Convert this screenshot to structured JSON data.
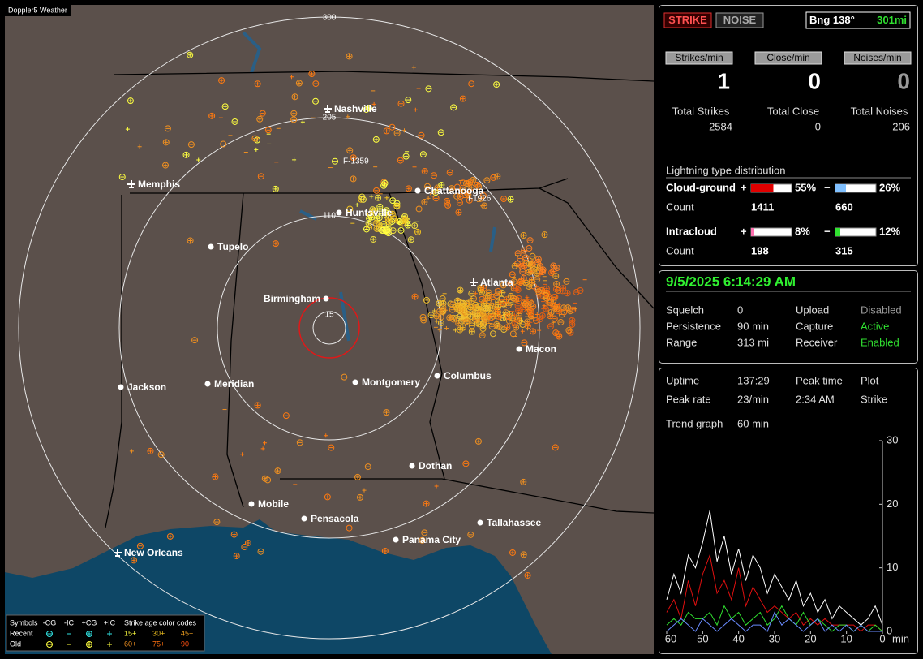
{
  "map": {
    "brand": "Doppler5 Weather",
    "rings": [
      "300",
      "205",
      "110",
      "15"
    ],
    "cities": [
      "Nashville",
      "Memphis",
      "Chattanooga",
      "Huntsville",
      "Tupelo",
      "Birmingham",
      "Atlanta",
      "Macon",
      "Jackson",
      "Meridian",
      "Montgomery",
      "Columbus",
      "Dothan",
      "Mobile",
      "Pensacola",
      "Tallahassee",
      "Panama City",
      "New Orleans"
    ],
    "markers": [
      "F-1359",
      "I-1926"
    ],
    "legend": {
      "symbols_label": "Symbols",
      "headers": [
        "-CG",
        "-IC",
        "+CG",
        "+IC"
      ],
      "age_label": "Strike age color codes",
      "rows": [
        "Recent",
        "Old"
      ],
      "recent_ages": [
        "15+",
        "30+",
        "45+"
      ],
      "old_ages": [
        "60+",
        "75+",
        "90+"
      ]
    }
  },
  "status": {
    "buttons": [
      "STRIKE",
      "NOISE"
    ],
    "bearing": "Bng 138°",
    "distance": "301mi",
    "rates": [
      {
        "label": "Strikes/min",
        "value": 1
      },
      {
        "label": "Close/min",
        "value": 0
      },
      {
        "label": "Noises/min",
        "value": 0
      }
    ],
    "totals": [
      {
        "label": "Total Strikes",
        "value": 2584
      },
      {
        "label": "Total Close",
        "value": 0
      },
      {
        "label": "Total Noises",
        "value": 206
      }
    ],
    "distribution": {
      "title": "Lightning type distribution",
      "count_label": "Count",
      "rows": [
        {
          "name": "Cloud-ground",
          "pos_sign": "+",
          "pos": {
            "value": 55,
            "label": "55%"
          },
          "neg_sign": "−",
          "neg": {
            "value": 26,
            "label": "26%"
          },
          "pos_count": 1411,
          "neg_count": 660
        },
        {
          "name": "Intracloud",
          "pos_sign": "+",
          "pos": {
            "value": 8,
            "label": "8%"
          },
          "neg_sign": "−",
          "neg": {
            "value": 12,
            "label": "12%"
          },
          "pos_count": 198,
          "neg_count": 315
        }
      ]
    }
  },
  "settings": {
    "datetime": "9/5/2025 6:14:29 AM",
    "rows": [
      [
        "Squelch",
        "0",
        "Upload",
        "Disabled"
      ],
      [
        "Persistence",
        "90 min",
        "Capture",
        "Active"
      ],
      [
        "Range",
        "313 mi",
        "Receiver",
        "Enabled"
      ]
    ]
  },
  "stats": {
    "rows": [
      [
        "Uptime",
        "137:29",
        "Peak time",
        "Plot"
      ],
      [
        "Peak rate",
        "23/min",
        "2:34 AM",
        "Strike"
      ]
    ],
    "trend_label": "Trend graph",
    "trend_span": "60 min"
  },
  "trend": {
    "type": "line",
    "x": [
      60,
      58,
      56,
      54,
      52,
      50,
      48,
      46,
      44,
      42,
      40,
      38,
      36,
      34,
      32,
      30,
      28,
      26,
      24,
      22,
      20,
      18,
      16,
      14,
      12,
      10,
      8,
      6,
      4,
      2,
      0
    ],
    "xlim": [
      60,
      0
    ],
    "xticks": [
      60,
      50,
      40,
      30,
      20,
      10,
      0
    ],
    "x_unit": "min",
    "ylim": [
      0,
      30
    ],
    "yticks": [
      0,
      10,
      20,
      30
    ],
    "series": [
      {
        "color": "#ffffff",
        "values": [
          5,
          9,
          6,
          12,
          10,
          14,
          19,
          11,
          15,
          9,
          13,
          8,
          12,
          10,
          6,
          9,
          7,
          5,
          8,
          4,
          6,
          3,
          5,
          2,
          4,
          3,
          2,
          1,
          2,
          4,
          1
        ]
      },
      {
        "color": "#e01010",
        "values": [
          3,
          5,
          2,
          8,
          4,
          9,
          12,
          6,
          8,
          5,
          10,
          4,
          7,
          5,
          3,
          4,
          3,
          2,
          3,
          1,
          2,
          1,
          2,
          1,
          1,
          1,
          1,
          0,
          1,
          1,
          0
        ]
      },
      {
        "color": "#30e030",
        "values": [
          1,
          2,
          1,
          3,
          2,
          2,
          3,
          1,
          4,
          2,
          3,
          1,
          2,
          3,
          1,
          2,
          4,
          2,
          1,
          3,
          1,
          2,
          1,
          0,
          1,
          1,
          0,
          1,
          0,
          1,
          0
        ]
      },
      {
        "color": "#6a8cff",
        "values": [
          0,
          1,
          2,
          1,
          0,
          2,
          1,
          0,
          1,
          2,
          1,
          0,
          1,
          1,
          0,
          3,
          1,
          2,
          1,
          0,
          1,
          2,
          0,
          1,
          0,
          1,
          0,
          1,
          0,
          0,
          0
        ]
      }
    ]
  }
}
